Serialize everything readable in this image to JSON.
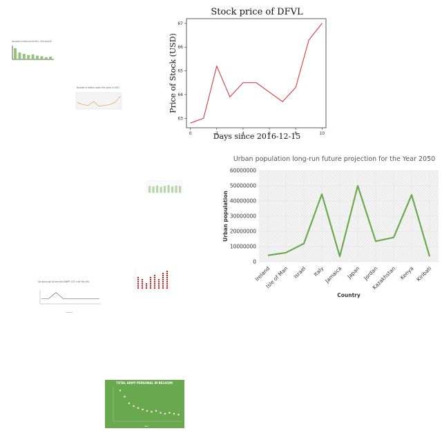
{
  "chart_data": [
    {
      "type": "line",
      "title": "Stock price of DFVL",
      "xlabel": "Days since 2016-12-15",
      "ylabel": "Price of Stock (USD)",
      "x": [
        0,
        1,
        2,
        3,
        4,
        5,
        6,
        7,
        8,
        9,
        10
      ],
      "values": [
        62.8,
        63.0,
        65.2,
        63.9,
        64.5,
        64.5,
        64.1,
        63.7,
        64.3,
        66.3,
        67.0
      ],
      "xticks": [
        "0",
        "2",
        "4",
        "6",
        "8",
        "10"
      ],
      "yticks": [
        "63",
        "64",
        "65",
        "66",
        "67"
      ],
      "ylim": [
        62.6,
        67.2
      ],
      "xlim": [
        -0.3,
        10.3
      ],
      "color": "#d62728"
    },
    {
      "type": "line",
      "title": "Urban population long-run future projection for the Year 2050",
      "xlabel": "Country",
      "ylabel": "Urban population",
      "categories": [
        "Ireland",
        "Isle of Man",
        "Israel",
        "Italy",
        "Jamaica",
        "Japan",
        "Jordan",
        "Kazakhstan",
        "Kenya",
        "Kiribati"
      ],
      "values": [
        4200000,
        6000000,
        12000000,
        44500000,
        3500000,
        50000000,
        13500000,
        16000000,
        44000000,
        3500000
      ],
      "yticks": [
        "0",
        "10000000",
        "20000000",
        "30000000",
        "40000000",
        "50000000",
        "60000000"
      ],
      "ylim": [
        0,
        60000000
      ],
      "color": "#6aa84f",
      "grid": true
    },
    {
      "type": "bar",
      "title": "Urban population (% of total) by country from 1960 to ... (2005) in the year 2050",
      "values": [
        90,
        55,
        45,
        35,
        40,
        30,
        25,
        18,
        22
      ],
      "color": "#93c47d"
    },
    {
      "type": "line",
      "title": "Number of deaths under five years in 2001",
      "values": [
        40,
        25,
        20,
        45,
        15,
        20,
        25,
        40,
        80
      ],
      "color": "#e69138"
    },
    {
      "type": "bar",
      "title": "",
      "values": [
        70,
        65,
        75,
        60,
        70,
        80,
        65,
        75,
        70
      ],
      "color": "#b6d7a8"
    },
    {
      "type": "scatter",
      "title": "",
      "values": [
        6,
        5,
        3,
        6,
        7,
        5,
        8,
        9
      ],
      "color": "#cc0000"
    },
    {
      "type": "line",
      "title": "Sex ratio by age (40 year olds) (UNWPP, 2017) in the Year 1990",
      "xlabel": "Countries",
      "values": [
        1.0,
        1.0,
        1.6,
        1.0,
        1.0,
        1.0,
        1.0,
        1.0,
        1.0
      ],
      "color": "#555555"
    },
    {
      "type": "scatter",
      "title": "TOTAL ARMY PERSONAL IN BELGIUM",
      "xlabel": "Year",
      "values": [
        95,
        82,
        68,
        62,
        58,
        55,
        52,
        50,
        52,
        48,
        46,
        48,
        46,
        44
      ],
      "color": "#ffffff",
      "background": "#6aa84f"
    }
  ]
}
